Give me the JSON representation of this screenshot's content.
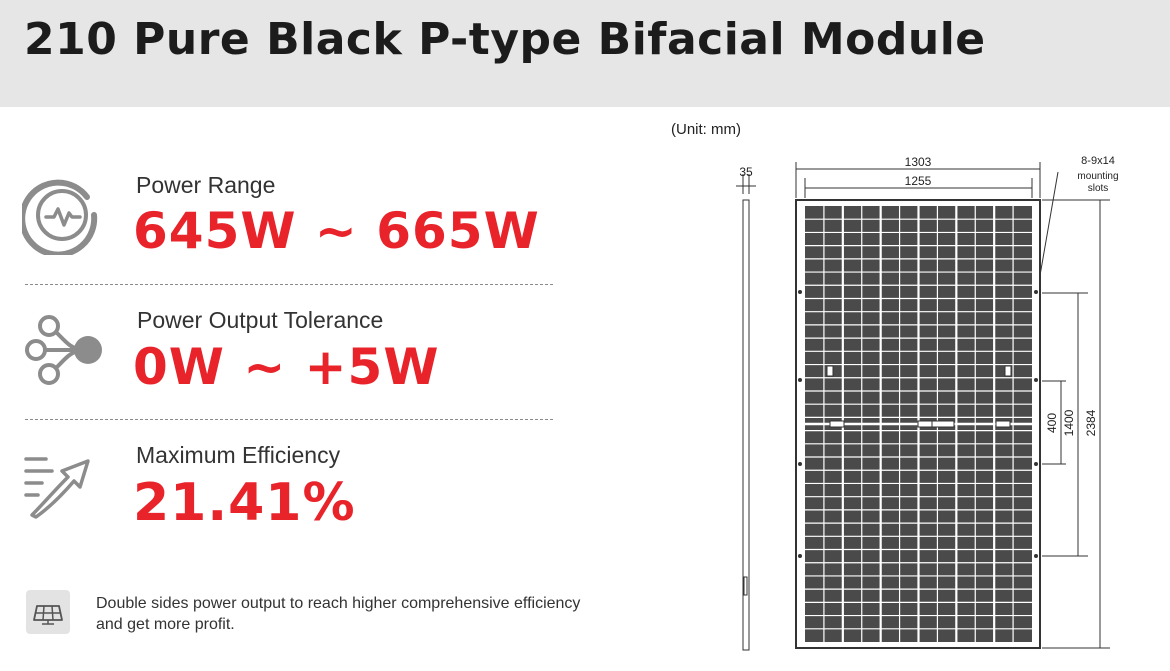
{
  "title": "210 Pure Black P-type Bifacial Module",
  "specs": {
    "power_range": {
      "label": "Power Range",
      "value": "645W ~ 665W",
      "icon": "pulse-circle-icon"
    },
    "power_tolerance": {
      "label": "Power Output Tolerance",
      "value": "0W ~ +5W",
      "icon": "network-nodes-icon"
    },
    "efficiency": {
      "label": "Maximum Efficiency",
      "value": "21.41%",
      "icon": "speed-arrow-icon"
    }
  },
  "note": {
    "text": "Double sides power output to reach higher comprehensive efficiency and get more profit.",
    "icon": "solar-panel-icon"
  },
  "drawing": {
    "unit": "(Unit: mm)",
    "dimensions": {
      "thickness": "35",
      "outer_width": "1303",
      "inner_width": "1255",
      "slots_spec": "8-9x14",
      "slots_caption_1": "mounting",
      "slots_caption_2": "slots",
      "spacing_small": "400",
      "spacing_large": "1400",
      "height": "2384"
    }
  },
  "colors": {
    "accent": "#e8232a",
    "header_bg": "#e6e6e6",
    "icon_gray": "#8c8c8c"
  }
}
